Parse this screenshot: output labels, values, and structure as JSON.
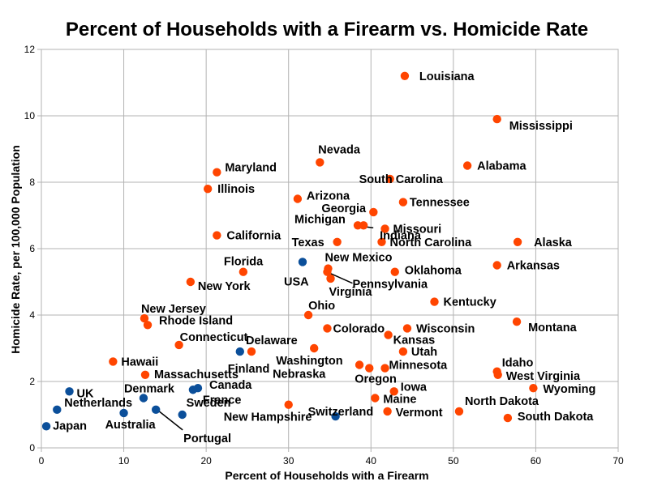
{
  "chart_data": {
    "type": "scatter",
    "title": "Percent of Households with a Firearm vs. Homicide Rate",
    "xlabel": "Percent of Households with a Firearm",
    "ylabel": "Homicide Rate, per 100,000 Population",
    "xlim": [
      0,
      70
    ],
    "ylim": [
      0,
      12
    ],
    "xticks": [
      "0",
      "10",
      "20",
      "30",
      "40",
      "50",
      "60",
      "70"
    ],
    "yticks": [
      "0",
      "2",
      "4",
      "6",
      "8",
      "10",
      "12"
    ],
    "grid": true,
    "legend": "none",
    "colors": {
      "us_states": "#ff4500",
      "countries": "#0b4f9a"
    },
    "series": [
      {
        "group": "us_states",
        "points": [
          {
            "label": "Louisiana",
            "x": 44.1,
            "y": 11.2
          },
          {
            "label": "Mississippi",
            "x": 55.3,
            "y": 9.9
          },
          {
            "label": "Nevada",
            "x": 33.8,
            "y": 8.6
          },
          {
            "label": "Maryland",
            "x": 21.3,
            "y": 8.3
          },
          {
            "label": "South Carolina",
            "x": 42.3,
            "y": 8.1
          },
          {
            "label": "Alabama",
            "x": 51.7,
            "y": 8.5
          },
          {
            "label": "Illinois",
            "x": 20.2,
            "y": 7.8
          },
          {
            "label": "Arizona",
            "x": 31.1,
            "y": 7.5
          },
          {
            "label": "Tennessee",
            "x": 43.9,
            "y": 7.4
          },
          {
            "label": "Georgia",
            "x": 40.3,
            "y": 7.1
          },
          {
            "label": "Indiana",
            "x": 39.1,
            "y": 6.7
          },
          {
            "label": "Michigan",
            "x": 38.4,
            "y": 6.7
          },
          {
            "label": "Missouri",
            "x": 41.7,
            "y": 6.6
          },
          {
            "label": "California",
            "x": 21.3,
            "y": 6.4
          },
          {
            "label": "Texas",
            "x": 35.9,
            "y": 6.2
          },
          {
            "label": "North Carolina",
            "x": 41.3,
            "y": 6.2
          },
          {
            "label": "Alaska",
            "x": 57.8,
            "y": 6.2
          },
          {
            "label": "Oklahoma",
            "x": 42.9,
            "y": 5.3
          },
          {
            "label": "Arkansas",
            "x": 55.3,
            "y": 5.5
          },
          {
            "label": "Florida",
            "x": 24.5,
            "y": 5.3
          },
          {
            "label": "New Mexico",
            "x": 34.8,
            "y": 5.4
          },
          {
            "label": "Pennsylvania",
            "x": 34.7,
            "y": 5.3
          },
          {
            "label": "Virginia",
            "x": 35.1,
            "y": 5.1
          },
          {
            "label": "New York",
            "x": 18.1,
            "y": 5.0
          },
          {
            "label": "Kentucky",
            "x": 47.7,
            "y": 4.4
          },
          {
            "label": "Ohio",
            "x": 32.4,
            "y": 4.0
          },
          {
            "label": "New Jersey",
            "x": 12.5,
            "y": 3.9
          },
          {
            "label": "Rhode Island",
            "x": 12.9,
            "y": 3.7
          },
          {
            "label": "Montana",
            "x": 57.7,
            "y": 3.8
          },
          {
            "label": "Colorado",
            "x": 34.7,
            "y": 3.6
          },
          {
            "label": "Wisconsin",
            "x": 44.4,
            "y": 3.6
          },
          {
            "label": "Kansas",
            "x": 42.1,
            "y": 3.4
          },
          {
            "label": "Connecticut",
            "x": 16.7,
            "y": 3.1
          },
          {
            "label": "Delaware",
            "x": 25.5,
            "y": 2.9
          },
          {
            "label": "Washington",
            "x": 33.1,
            "y": 3.0
          },
          {
            "label": "Utah",
            "x": 43.9,
            "y": 2.9
          },
          {
            "label": "Hawaii",
            "x": 8.7,
            "y": 2.6
          },
          {
            "label": "Nebraska",
            "x": 38.6,
            "y": 2.5
          },
          {
            "label": "Minnesota",
            "x": 41.7,
            "y": 2.4
          },
          {
            "label": "Oregon",
            "x": 39.8,
            "y": 2.4
          },
          {
            "label": "Idaho",
            "x": 55.3,
            "y": 2.3
          },
          {
            "label": "West Virginia",
            "x": 55.4,
            "y": 2.2
          },
          {
            "label": "Massachusetts",
            "x": 12.6,
            "y": 2.2
          },
          {
            "label": "Iowa",
            "x": 42.8,
            "y": 1.7
          },
          {
            "label": "Wyoming",
            "x": 59.7,
            "y": 1.8
          },
          {
            "label": "Maine",
            "x": 40.5,
            "y": 1.5
          },
          {
            "label": "North Dakota",
            "x": 50.7,
            "y": 1.1
          },
          {
            "label": "New Hampshire",
            "x": 30.0,
            "y": 1.3
          },
          {
            "label": "Vermont",
            "x": 42.0,
            "y": 1.1
          },
          {
            "label": "South Dakota",
            "x": 56.6,
            "y": 0.9
          }
        ]
      },
      {
        "group": "countries",
        "points": [
          {
            "label": "USA",
            "x": 31.7,
            "y": 5.6
          },
          {
            "label": "Finland",
            "x": 24.1,
            "y": 2.9
          },
          {
            "label": "Canada",
            "x": 19.0,
            "y": 1.8
          },
          {
            "label": "France",
            "x": 18.4,
            "y": 1.75
          },
          {
            "label": "Denmark",
            "x": 12.4,
            "y": 1.5
          },
          {
            "label": "UK",
            "x": 3.4,
            "y": 1.7
          },
          {
            "label": "Netherlands",
            "x": 1.9,
            "y": 1.15
          },
          {
            "label": "Australia",
            "x": 10.0,
            "y": 1.05
          },
          {
            "label": "Portugal",
            "x": 13.9,
            "y": 1.15
          },
          {
            "label": "Sweden",
            "x": 17.1,
            "y": 1.0
          },
          {
            "label": "Switzerland",
            "x": 35.7,
            "y": 0.95
          },
          {
            "label": "Japan",
            "x": 0.6,
            "y": 0.65
          }
        ]
      }
    ]
  }
}
